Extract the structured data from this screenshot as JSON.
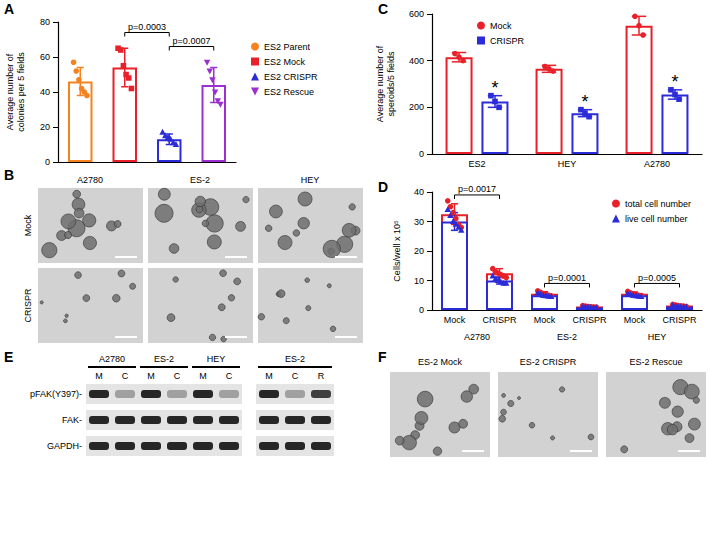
{
  "chart_data": [
    {
      "type": "bar",
      "title": "A",
      "ylabel": "Average number of\ncolonies per 5 fields",
      "categories": [
        "ES2 Parent",
        "ES2 Mock",
        "ES2 CRISPR",
        "ES2 Rescue"
      ],
      "ylim": [
        0,
        80
      ],
      "yticks": [
        0,
        20,
        40,
        60,
        80
      ],
      "grid": false,
      "tick_labels": "y",
      "legend": "right",
      "series": [
        {
          "name": "ES2 Parent",
          "color": "#f5821f",
          "marker": "circle",
          "values": [
            46,
            null,
            null,
            null
          ],
          "errors": [
            8,
            null,
            null,
            null
          ],
          "points": [
            [
              57,
              52,
              47,
              42,
              40,
              38
            ],
            [],
            [],
            []
          ]
        },
        {
          "name": "ES2 Mock",
          "color": "#e8202a",
          "marker": "square",
          "values": [
            null,
            54,
            null,
            null
          ],
          "errors": [
            null,
            11,
            null,
            null
          ],
          "points": [
            [],
            [
              65,
              64,
              55,
              50,
              48,
              42
            ],
            [],
            []
          ]
        },
        {
          "name": "ES2 CRISPR",
          "color": "#2b2bd8",
          "marker": "triangle",
          "values": [
            null,
            null,
            13,
            null
          ],
          "errors": [
            null,
            null,
            3,
            null
          ],
          "points": [
            [],
            [],
            [
              17,
              15,
              14,
              13,
              11,
              10
            ],
            []
          ]
        },
        {
          "name": "ES2 Rescue",
          "color": "#9b2fcf",
          "marker": "triangle-down",
          "values": [
            null,
            null,
            null,
            44
          ],
          "errors": [
            null,
            null,
            null,
            10
          ],
          "points": [
            [],
            [],
            [],
            [
              57,
              52,
              47,
              40,
              35,
              33
            ]
          ]
        }
      ],
      "annotations": [
        {
          "from": 1,
          "to": 2,
          "y": 74,
          "text": "p=0.0003"
        },
        {
          "from": 2,
          "to": 3,
          "y": 66,
          "text": "p=0.0007"
        }
      ]
    },
    {
      "type": "bar",
      "title": "C",
      "ylabel": "Average number of\nsperoids/5 fields",
      "categories": [
        "ES2",
        "HEY",
        "A2780"
      ],
      "ylim": [
        0,
        600
      ],
      "yticks": [
        0,
        200,
        400,
        600
      ],
      "grid": false,
      "legend": "upper left",
      "series": [
        {
          "name": "Mock",
          "color": "#e8202a",
          "marker": "circle",
          "values": [
            415,
            365,
            550
          ],
          "errors": [
            20,
            15,
            40
          ],
          "points": [
            [
              430,
              415,
              400
            ],
            [
              375,
              365,
              355
            ],
            [
              590,
              550,
              510
            ]
          ]
        },
        {
          "name": "CRISPR",
          "color": "#2b2bd8",
          "marker": "square",
          "values": [
            225,
            175,
            255
          ],
          "errors": [
            25,
            15,
            20
          ],
          "points": [
            [
              250,
              225,
              200
            ],
            [
              190,
              175,
              160
            ],
            [
              275,
              255,
              235
            ]
          ]
        }
      ],
      "annotations": [
        {
          "category": 0,
          "series": "CRISPR",
          "y": 285,
          "text": "*"
        },
        {
          "category": 1,
          "series": "CRISPR",
          "y": 225,
          "text": "*"
        },
        {
          "category": 2,
          "series": "CRISPR",
          "y": 310,
          "text": "*"
        }
      ]
    },
    {
      "type": "bar",
      "title": "D",
      "ylabel": "Cells/well x 10⁵",
      "categories": [
        "Mock",
        "CRISPR",
        "Mock",
        "CRISPR",
        "Mock",
        "CRISPR"
      ],
      "groups": [
        "A2780",
        "ES-2",
        "HEY"
      ],
      "ylim": [
        0,
        40
      ],
      "yticks": [
        0,
        10,
        20,
        30,
        40
      ],
      "grid": false,
      "legend": "upper right",
      "series": [
        {
          "name": "total cell number",
          "color": "#e8202a",
          "marker": "circle",
          "values": [
            32.5,
            12.5,
            5.5,
            1.2,
            5.5,
            1.5
          ],
          "errors": [
            3.5,
            1.5,
            0.7,
            0.2,
            0.6,
            0.3
          ],
          "points": [
            [
              37,
              35,
              33,
              31,
              29,
              28
            ],
            [
              14,
              13,
              12.5,
              12,
              11.5,
              11
            ],
            [
              6.5,
              6,
              5.5,
              5.3,
              5,
              4.8
            ],
            [
              1.5,
              1.3,
              1.2,
              1.1,
              1,
              1
            ],
            [
              6.3,
              5.8,
              5.5,
              5.3,
              5,
              4.9
            ],
            [
              1.9,
              1.7,
              1.5,
              1.4,
              1.3,
              1.2
            ]
          ]
        },
        {
          "name": "live cell number",
          "color": "#2b2bd8",
          "marker": "triangle",
          "values": [
            30,
            10,
            5,
            0.9,
            5,
            1.2
          ],
          "errors": [
            3,
            1.2,
            0.6,
            0.2,
            0.5,
            0.2
          ],
          "points": [
            [
              34,
              32,
              30,
              29,
              28,
              27
            ],
            [
              11.5,
              10.5,
              10,
              9.5,
              9,
              9
            ],
            [
              5.8,
              5.3,
              5,
              4.8,
              4.6,
              4.5
            ],
            [
              1.1,
              1,
              0.9,
              0.8,
              0.8,
              0.8
            ],
            [
              5.6,
              5.2,
              5,
              4.8,
              4.6,
              4.5
            ],
            [
              1.5,
              1.3,
              1.2,
              1.1,
              1,
              1
            ]
          ]
        }
      ],
      "annotations": [
        {
          "from": 0,
          "to": 1,
          "y": 39,
          "text": "p=0.0017"
        },
        {
          "from": 2,
          "to": 3,
          "y": 9,
          "text": "p=0.0001"
        },
        {
          "from": 4,
          "to": 5,
          "y": 9,
          "text": "p=0.0005"
        }
      ]
    }
  ],
  "panels": {
    "B": {
      "label": "B",
      "columns": [
        "A2780",
        "ES-2",
        "HEY"
      ],
      "rows": [
        "Mock",
        "CRISPR"
      ]
    },
    "E": {
      "label": "E",
      "groups": [
        {
          "label": "A2780",
          "lanes": [
            "M",
            "C"
          ]
        },
        {
          "label": "ES-2",
          "lanes": [
            "M",
            "C"
          ]
        },
        {
          "label": "HEY",
          "lanes": [
            "M",
            "C"
          ]
        },
        {
          "label": "ES-2",
          "lanes": [
            "M",
            "C",
            "R"
          ]
        }
      ],
      "rows": [
        "pFAK(Y397)-",
        "FAK-",
        "GAPDH-"
      ]
    },
    "F": {
      "label": "F",
      "images": [
        "ES-2 Mock",
        "ES-2 CRISPR",
        "ES-2 Rescue"
      ]
    }
  }
}
